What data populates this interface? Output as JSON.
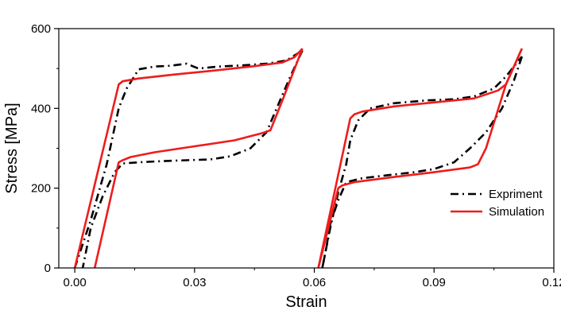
{
  "chart_data": {
    "type": "line",
    "title": "",
    "xlabel": "Strain",
    "ylabel": "Stress [MPa]",
    "xlim": [
      -0.004,
      0.12
    ],
    "ylim": [
      0,
      600
    ],
    "xticks": [
      0.0,
      0.03,
      0.06,
      0.09,
      0.12
    ],
    "xtick_labels": [
      "0.00",
      "0.03",
      "0.06",
      "0.09",
      "0.12"
    ],
    "yticks": [
      0,
      200,
      400,
      600
    ],
    "ytick_labels": [
      "0",
      "200",
      "400",
      "600"
    ],
    "grid": false,
    "legend_position": "right",
    "series": [
      {
        "name": "Expriment",
        "color": "#000000",
        "style": "dash-dot",
        "segments": [
          [
            [
              0.0,
              0
            ],
            [
              0.004,
              120
            ],
            [
              0.008,
              260
            ],
            [
              0.011,
              400
            ],
            [
              0.013,
              450
            ],
            [
              0.016,
              498
            ],
            [
              0.02,
              505
            ],
            [
              0.024,
              507
            ],
            [
              0.028,
              512
            ],
            [
              0.031,
              500
            ],
            [
              0.036,
              505
            ],
            [
              0.042,
              508
            ],
            [
              0.048,
              512
            ],
            [
              0.053,
              520
            ],
            [
              0.057,
              545
            ]
          ],
          [
            [
              0.057,
              545
            ],
            [
              0.054,
              480
            ],
            [
              0.051,
              410
            ],
            [
              0.048,
              340
            ],
            [
              0.044,
              300
            ],
            [
              0.039,
              280
            ],
            [
              0.034,
              272
            ],
            [
              0.028,
              270
            ],
            [
              0.022,
              268
            ],
            [
              0.016,
              265
            ],
            [
              0.012,
              262
            ],
            [
              0.01,
              240
            ],
            [
              0.007,
              180
            ],
            [
              0.004,
              100
            ],
            [
              0.002,
              0
            ]
          ],
          [
            [
              0.062,
              0
            ],
            [
              0.064,
              100
            ],
            [
              0.066,
              190
            ],
            [
              0.068,
              260
            ],
            [
              0.069,
              320
            ],
            [
              0.071,
              370
            ],
            [
              0.074,
              400
            ],
            [
              0.08,
              413
            ],
            [
              0.088,
              420
            ],
            [
              0.095,
              423
            ],
            [
              0.1,
              430
            ],
            [
              0.105,
              450
            ],
            [
              0.108,
              480
            ],
            [
              0.112,
              530
            ]
          ],
          [
            [
              0.112,
              530
            ],
            [
              0.11,
              470
            ],
            [
              0.107,
              400
            ],
            [
              0.103,
              340
            ],
            [
              0.099,
              300
            ],
            [
              0.095,
              265
            ],
            [
              0.09,
              248
            ],
            [
              0.085,
              240
            ],
            [
              0.078,
              232
            ],
            [
              0.072,
              225
            ],
            [
              0.068,
              215
            ],
            [
              0.066,
              170
            ],
            [
              0.064,
              110
            ],
            [
              0.063,
              50
            ],
            [
              0.062,
              0
            ]
          ]
        ]
      },
      {
        "name": "Simulation",
        "color": "#ee1c1c",
        "style": "solid",
        "segments": [
          [
            [
              0.0,
              0
            ],
            [
              0.011,
              460
            ],
            [
              0.012,
              468
            ],
            [
              0.016,
              475
            ],
            [
              0.025,
              485
            ],
            [
              0.035,
              495
            ],
            [
              0.045,
              506
            ],
            [
              0.052,
              515
            ],
            [
              0.055,
              528
            ],
            [
              0.057,
              550
            ]
          ],
          [
            [
              0.057,
              550
            ],
            [
              0.052,
              420
            ],
            [
              0.049,
              345
            ],
            [
              0.047,
              338
            ],
            [
              0.04,
              320
            ],
            [
              0.03,
              305
            ],
            [
              0.02,
              290
            ],
            [
              0.014,
              278
            ],
            [
              0.012,
              270
            ],
            [
              0.011,
              265
            ],
            [
              0.005,
              0
            ]
          ],
          [
            [
              0.061,
              0
            ],
            [
              0.069,
              375
            ],
            [
              0.07,
              385
            ],
            [
              0.072,
              392
            ],
            [
              0.08,
              405
            ],
            [
              0.09,
              415
            ],
            [
              0.1,
              425
            ],
            [
              0.106,
              445
            ],
            [
              0.108,
              460
            ],
            [
              0.11,
              505
            ],
            [
              0.112,
              550
            ]
          ],
          [
            [
              0.112,
              550
            ],
            [
              0.108,
              460
            ],
            [
              0.103,
              300
            ],
            [
              0.101,
              260
            ],
            [
              0.099,
              252
            ],
            [
              0.09,
              240
            ],
            [
              0.08,
              228
            ],
            [
              0.07,
              215
            ],
            [
              0.067,
              207
            ],
            [
              0.066,
              200
            ],
            [
              0.061,
              0
            ]
          ]
        ]
      }
    ]
  }
}
